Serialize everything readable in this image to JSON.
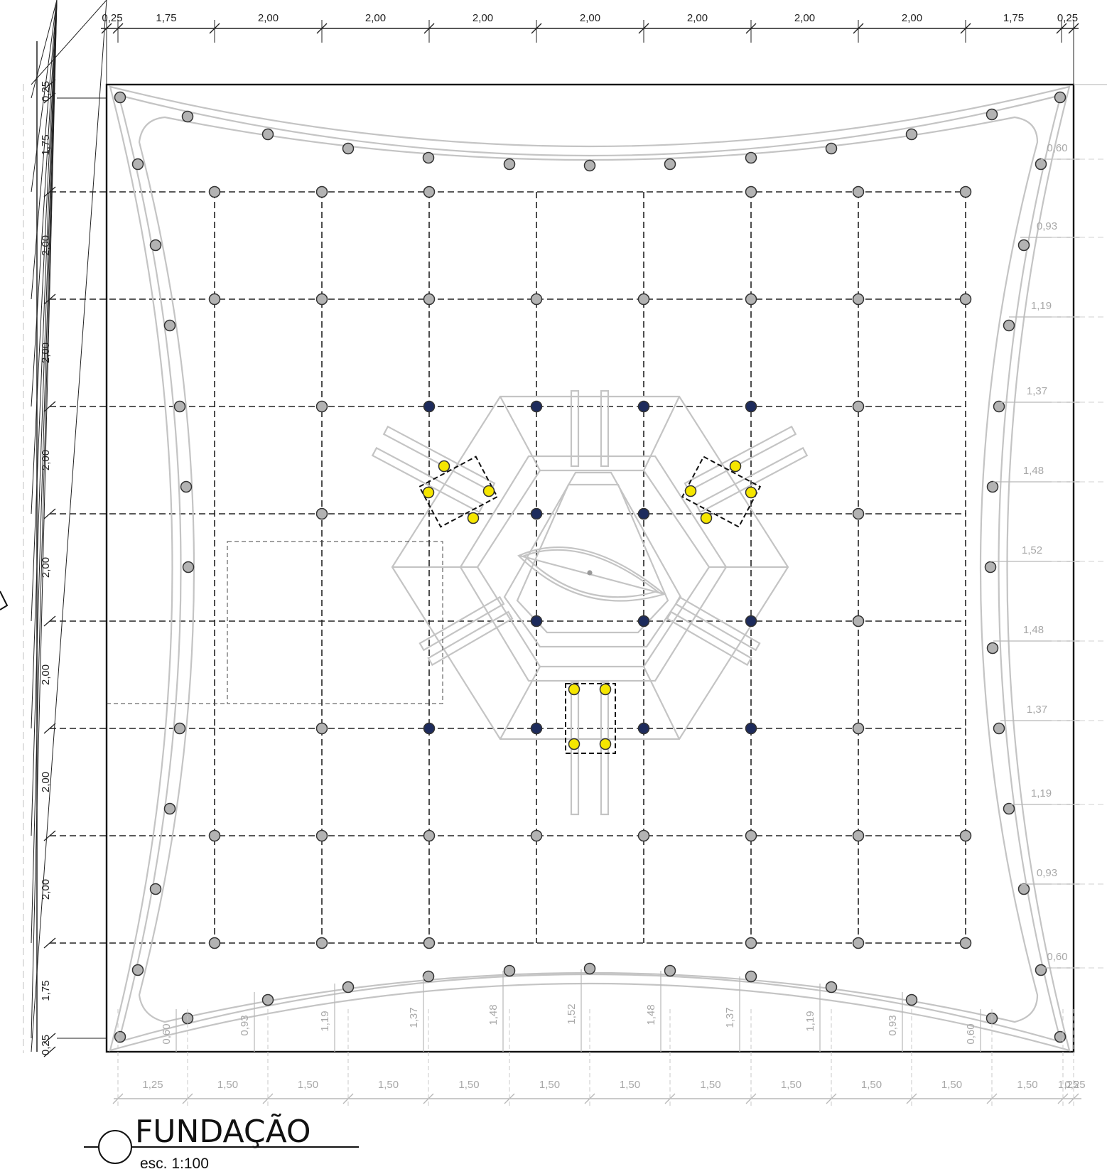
{
  "drawing": {
    "title": "FUNDAÇÃO",
    "scale": "esc. 1:100"
  },
  "dims_top": [
    "0,25",
    "1,75",
    "2,00",
    "2,00",
    "2,00",
    "2,00",
    "2,00",
    "2,00",
    "2,00",
    "1,75",
    "0,25"
  ],
  "dims_left": [
    "0,25",
    "1,75",
    "2,00",
    "2,00",
    "2,00",
    "2,00",
    "2,00",
    "2,00",
    "2,00",
    "1,75",
    "0,25"
  ],
  "dims_bottom": [
    "1,25",
    "1,50",
    "1,50",
    "1,50",
    "1,50",
    "1,50",
    "1,50",
    "1,50",
    "1,50",
    "1,50",
    "1,50",
    "1,50",
    "1,25",
    "0,25"
  ],
  "dims_bottom_offsets": [
    "0,60",
    "0,93",
    "1,19",
    "1,37",
    "1,48",
    "1,52",
    "1,48",
    "1,37",
    "1,19",
    "0,93",
    "0,60"
  ],
  "dims_right_offsets": [
    "0,60",
    "0,93",
    "1,19",
    "1,37",
    "1,48",
    "1,52",
    "1,48",
    "1,37",
    "1,19",
    "0,93",
    "0,60"
  ],
  "colors": {
    "grid": "#222222",
    "curve": "#c4c4c4",
    "grey_pile": "#b3b3b3",
    "navy_pile": "#1d2b5c",
    "yellow_pile": "#f5e600",
    "dimension_grey": "#a8a8a8"
  }
}
